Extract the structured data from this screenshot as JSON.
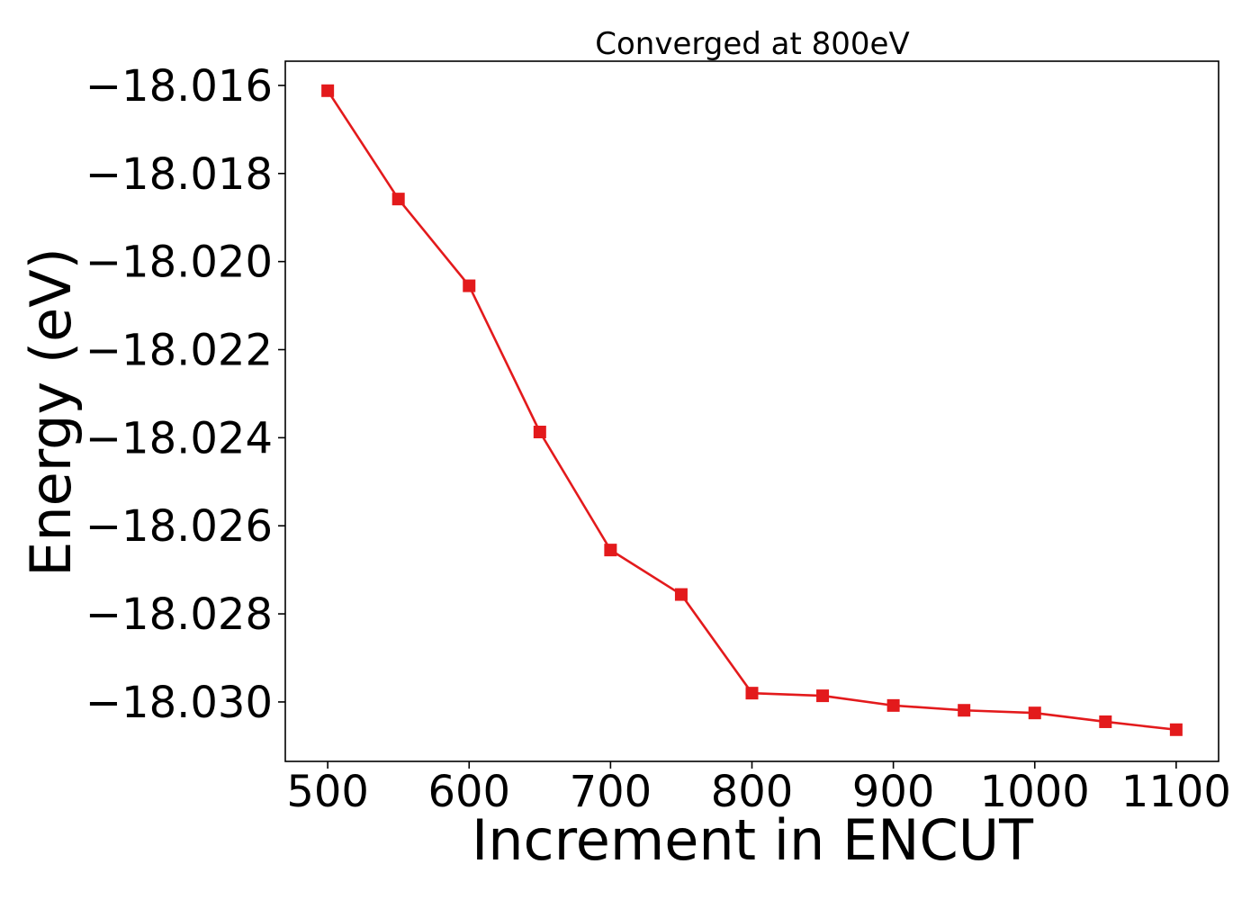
{
  "chart_data": {
    "type": "line",
    "title": "Converged at 800eV",
    "xlabel": "Increment in ENCUT",
    "ylabel": "Energy (eV)",
    "x": [
      500,
      550,
      600,
      650,
      700,
      750,
      800,
      850,
      900,
      950,
      1000,
      1050,
      1100
    ],
    "series": [
      {
        "values": [
          -18.01612,
          -18.01858,
          -18.02055,
          -18.02387,
          -18.02655,
          -18.02756,
          -18.0298,
          -18.02986,
          -18.03008,
          -18.03019,
          -18.03025,
          -18.03045,
          -18.03063
        ],
        "color": "#e31a1c",
        "marker": "square"
      }
    ],
    "xlim": [
      470,
      1130
    ],
    "ylim": [
      -18.03135,
      -18.01545
    ],
    "xticks": [
      500,
      600,
      700,
      800,
      900,
      1000,
      1100
    ],
    "xtick_labels": [
      "500",
      "600",
      "700",
      "800",
      "900",
      "1000",
      "1100"
    ],
    "yticks": [
      -18.016,
      -18.018,
      -18.02,
      -18.022,
      -18.024,
      -18.026,
      -18.028,
      -18.03
    ],
    "ytick_labels": [
      "−18.016",
      "−18.018",
      "−18.020",
      "−18.022",
      "−18.024",
      "−18.026",
      "−18.028",
      "−18.030"
    ],
    "grid": false,
    "legend": "none"
  }
}
